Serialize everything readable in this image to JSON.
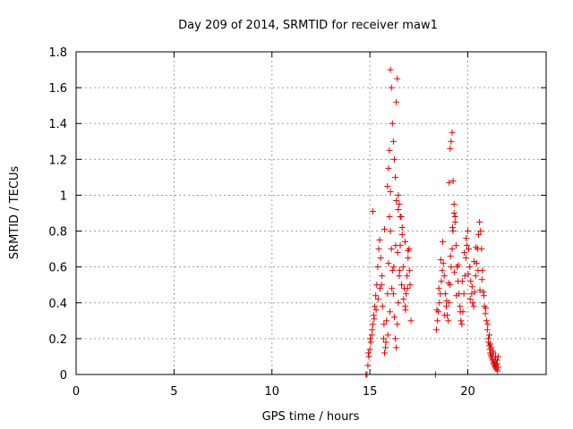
{
  "chart_data": {
    "type": "scatter",
    "title": "Day 209 of 2014, SRMTID for receiver maw1",
    "xlabel": "GPS time / hours",
    "ylabel": "SRMTID / TECUs",
    "xlim": [
      0,
      24
    ],
    "ylim": [
      0,
      1.8
    ],
    "xticks": [
      0,
      5,
      10,
      15,
      20
    ],
    "yticks": [
      0,
      0.2,
      0.4,
      0.6,
      0.8,
      1,
      1.2,
      1.4,
      1.6,
      1.8
    ],
    "ytick_labels": [
      "0",
      "0.2",
      "0.4",
      "0.6",
      "0.8",
      "1",
      "1.2",
      "1.4",
      "1.6",
      "1.8"
    ],
    "grid": true,
    "marker": "+",
    "color": "#e00000",
    "series": [
      {
        "x": [
          14.8,
          14.85,
          18.35,
          14.9,
          14.95,
          15.0,
          15.05,
          15.1,
          15.15,
          15.2,
          15.25,
          15.3,
          15.35,
          15.4,
          15.45,
          15.5,
          15.55,
          15.6,
          15.65,
          15.7,
          15.75,
          15.8,
          15.85,
          15.9,
          15.95,
          16.0,
          16.05,
          16.1,
          16.15,
          16.2,
          16.25,
          16.3,
          16.35,
          16.4,
          16.45,
          16.5,
          16.55,
          16.6,
          16.65,
          16.7,
          16.75,
          16.8,
          16.85,
          16.9,
          16.95,
          17.0,
          17.05,
          17.1,
          14.92,
          15.02,
          15.12,
          15.22,
          15.32,
          15.42,
          15.52,
          15.62,
          15.72,
          15.82,
          15.92,
          16.02,
          16.12,
          16.22,
          16.32,
          16.42,
          16.52,
          16.62,
          16.72,
          16.82,
          16.92,
          17.02,
          15.9,
          15.95,
          16.0,
          16.05,
          16.1,
          16.15,
          16.2,
          16.25,
          16.3,
          16.35,
          16.4,
          16.45,
          16.5,
          15.15,
          15.75,
          16.05,
          16.35,
          16.45,
          16.55,
          16.65,
          16.8,
          16.95,
          18.4,
          18.45,
          18.5,
          18.55,
          18.6,
          18.65,
          18.7,
          18.75,
          18.8,
          18.85,
          18.9,
          18.95,
          19.0,
          19.05,
          19.1,
          19.15,
          19.2,
          19.25,
          19.3,
          19.35,
          19.4,
          19.45,
          19.5,
          19.55,
          19.6,
          19.65,
          19.7,
          19.75,
          19.8,
          19.85,
          19.9,
          19.95,
          20.0,
          20.05,
          20.1,
          20.15,
          20.2,
          20.25,
          20.3,
          20.35,
          20.4,
          20.45,
          20.5,
          20.55,
          20.6,
          20.65,
          20.7,
          20.75,
          20.8,
          20.85,
          20.9,
          20.95,
          18.42,
          18.52,
          18.62,
          18.72,
          18.82,
          18.92,
          19.02,
          19.12,
          19.22,
          19.32,
          19.42,
          19.52,
          19.62,
          19.72,
          19.82,
          19.92,
          20.02,
          20.12,
          20.22,
          20.32,
          20.42,
          20.52,
          20.62,
          20.72,
          20.82,
          20.92,
          19.05,
          19.1,
          19.15,
          19.2,
          19.25,
          19.3,
          19.35,
          21.0,
          21.05,
          21.1,
          21.15,
          21.2,
          21.25,
          21.3,
          21.35,
          21.4,
          21.45,
          21.5,
          21.55,
          21.05,
          21.12,
          21.18,
          21.25,
          21.32,
          21.38,
          21.45,
          21.52,
          21.1,
          21.2,
          21.3,
          21.4,
          21.5,
          21.02,
          21.15,
          21.28,
          21.42,
          21.55
        ],
        "y": [
          0.0,
          0.0,
          0.0,
          0.05,
          0.1,
          0.14,
          0.18,
          0.22,
          0.28,
          0.33,
          0.38,
          0.44,
          0.5,
          0.6,
          0.7,
          0.75,
          0.65,
          0.5,
          0.38,
          0.2,
          0.12,
          0.15,
          0.3,
          0.45,
          0.62,
          0.88,
          0.8,
          0.7,
          0.58,
          0.45,
          0.32,
          0.2,
          0.15,
          0.28,
          0.4,
          0.55,
          0.72,
          0.88,
          0.78,
          0.6,
          0.48,
          0.38,
          0.45,
          0.55,
          0.65,
          0.7,
          0.5,
          0.3,
          0.12,
          0.2,
          0.25,
          0.31,
          0.36,
          0.42,
          0.48,
          0.55,
          0.28,
          0.18,
          0.22,
          0.35,
          0.48,
          0.6,
          0.72,
          0.68,
          0.58,
          0.5,
          0.42,
          0.36,
          0.48,
          0.58,
          1.05,
          1.15,
          1.25,
          1.7,
          1.6,
          1.4,
          1.3,
          1.2,
          1.1,
          1.52,
          1.65,
          1.0,
          0.95,
          0.91,
          0.81,
          1.02,
          0.97,
          0.92,
          0.88,
          0.82,
          0.74,
          0.69,
          0.25,
          0.3,
          0.35,
          0.4,
          0.45,
          0.52,
          0.58,
          0.62,
          0.55,
          0.45,
          0.38,
          0.33,
          0.3,
          0.4,
          0.5,
          0.6,
          0.7,
          0.8,
          0.9,
          0.85,
          0.72,
          0.6,
          0.52,
          0.45,
          0.38,
          0.3,
          0.28,
          0.35,
          0.45,
          0.55,
          0.65,
          0.72,
          0.8,
          0.7,
          0.6,
          0.52,
          0.45,
          0.4,
          0.38,
          0.46,
          0.55,
          0.62,
          0.7,
          0.78,
          0.85,
          0.8,
          0.7,
          0.58,
          0.46,
          0.38,
          0.34,
          0.3,
          0.36,
          0.48,
          0.64,
          0.74,
          0.33,
          0.41,
          0.51,
          0.66,
          0.82,
          0.57,
          0.44,
          0.61,
          0.35,
          0.52,
          0.68,
          0.76,
          0.56,
          0.42,
          0.49,
          0.63,
          0.71,
          0.58,
          0.47,
          0.53,
          0.44,
          0.37,
          1.07,
          1.26,
          1.3,
          1.35,
          1.08,
          0.95,
          0.88,
          0.25,
          0.2,
          0.16,
          0.12,
          0.1,
          0.08,
          0.06,
          0.05,
          0.04,
          0.06,
          0.08,
          0.1,
          0.18,
          0.14,
          0.11,
          0.09,
          0.07,
          0.05,
          0.03,
          0.02,
          0.22,
          0.15,
          0.12,
          0.08,
          0.06,
          0.28,
          0.17,
          0.13,
          0.1,
          0.04
        ]
      }
    ]
  }
}
